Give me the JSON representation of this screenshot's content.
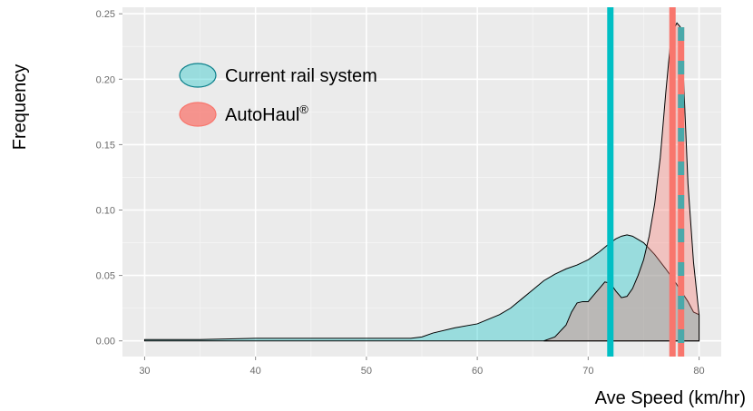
{
  "chart_data": {
    "type": "area",
    "xlabel": "Ave Speed (km/hr)",
    "ylabel": "Frequency",
    "xlim": [
      28,
      82
    ],
    "ylim": [
      -0.012,
      0.255
    ],
    "x_ticks": [
      30,
      40,
      50,
      60,
      70,
      80
    ],
    "y_ticks": [
      0.0,
      0.05,
      0.1,
      0.15,
      0.2,
      0.25
    ],
    "y_tick_labels": [
      "0.00",
      "0.05",
      "0.10",
      "0.15",
      "0.20",
      "0.25"
    ],
    "grid": true,
    "legend_position": "top-left",
    "series": [
      {
        "name": "Current rail system",
        "color": "#00BFC4",
        "fill_opacity": 0.35,
        "mean": 72.0,
        "x": [
          30,
          35,
          40,
          45,
          50,
          52,
          54,
          55,
          56,
          58,
          60,
          62,
          63,
          64,
          65,
          66,
          67,
          68,
          69,
          70,
          71,
          72,
          72.5,
          73,
          73.5,
          74,
          75,
          76,
          77,
          78,
          79,
          79.5,
          80
        ],
        "y": [
          0.001,
          0.001,
          0.002,
          0.002,
          0.002,
          0.002,
          0.002,
          0.003,
          0.006,
          0.01,
          0.013,
          0.02,
          0.025,
          0.032,
          0.039,
          0.046,
          0.051,
          0.055,
          0.058,
          0.062,
          0.068,
          0.075,
          0.078,
          0.08,
          0.081,
          0.08,
          0.075,
          0.066,
          0.055,
          0.043,
          0.03,
          0.022,
          0.02
        ]
      },
      {
        "name": "AutoHaul",
        "name_superscript": "®",
        "color": "#F8766D",
        "fill_opacity": 0.35,
        "mean": 77.6,
        "x": [
          66,
          67,
          68,
          68.5,
          69,
          69.5,
          70,
          70.5,
          71,
          71.5,
          72,
          72.5,
          73,
          73.5,
          74,
          74.5,
          75,
          75.5,
          76,
          76.5,
          77,
          77.5,
          78,
          78.3,
          78.6,
          79,
          79.5,
          80
        ],
        "y": [
          0.0,
          0.003,
          0.012,
          0.022,
          0.029,
          0.03,
          0.03,
          0.035,
          0.04,
          0.045,
          0.044,
          0.038,
          0.033,
          0.034,
          0.04,
          0.05,
          0.062,
          0.08,
          0.105,
          0.14,
          0.19,
          0.235,
          0.243,
          0.24,
          0.2,
          0.12,
          0.06,
          0.02
        ]
      }
    ],
    "stripe_color": "#00BFC4"
  }
}
